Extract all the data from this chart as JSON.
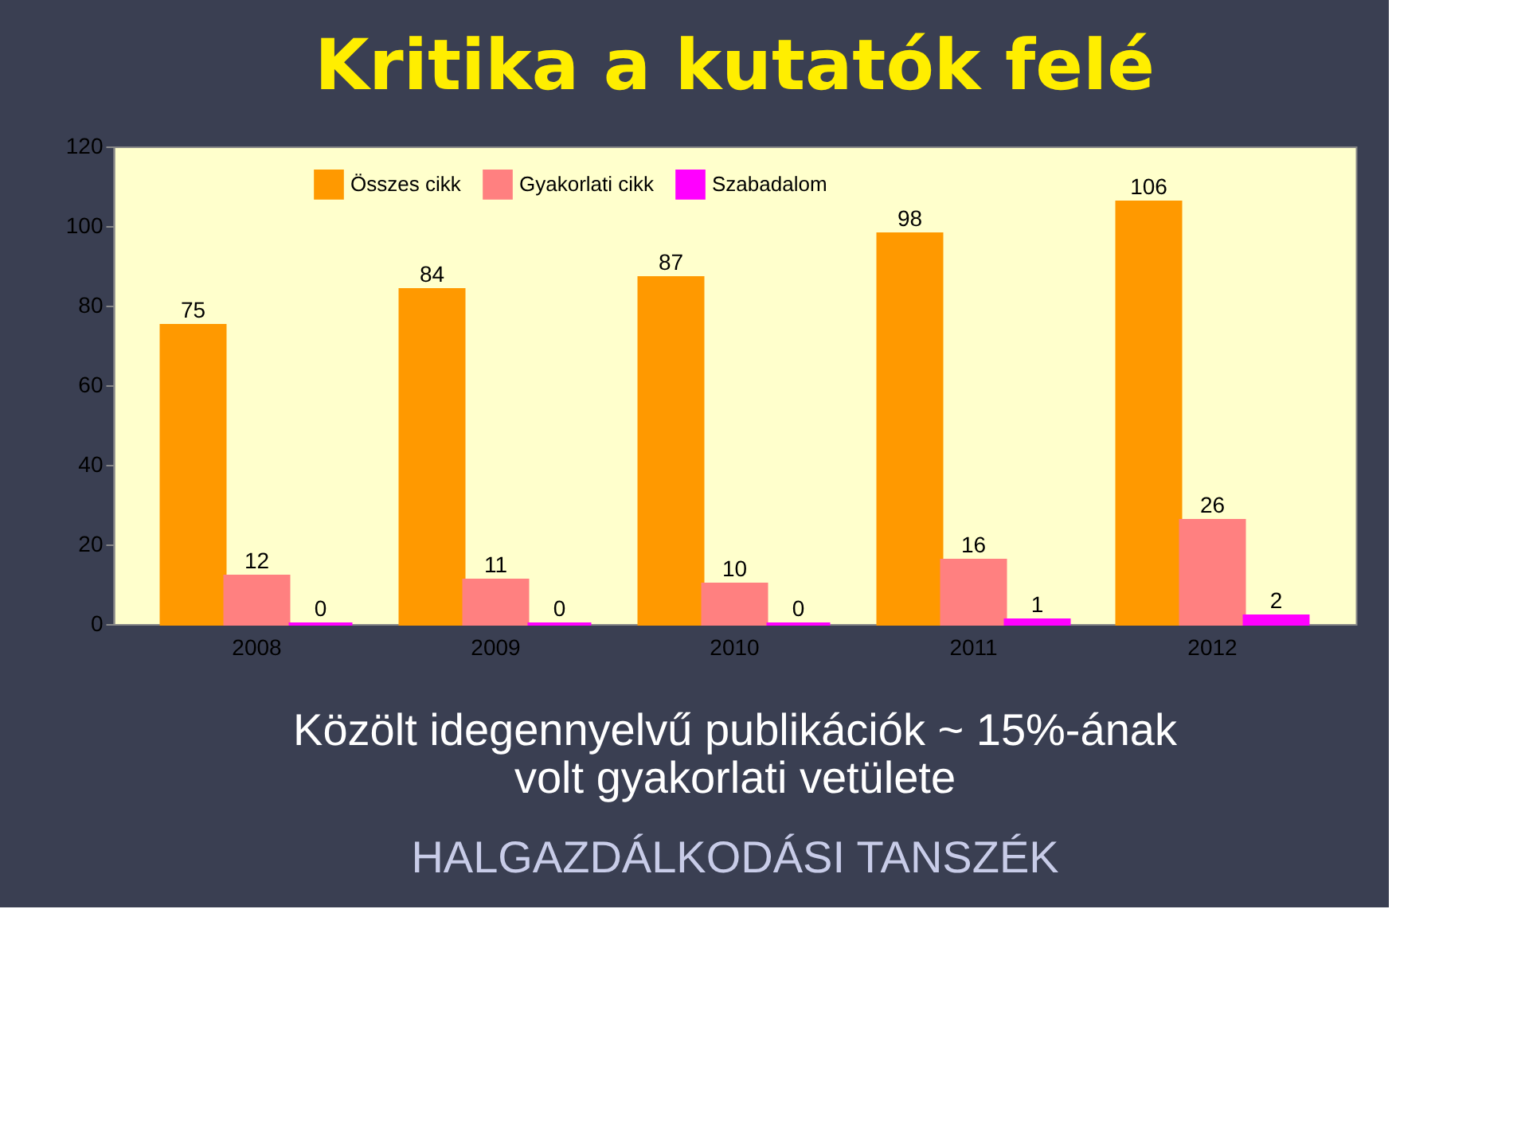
{
  "chart_data": {
    "type": "bar",
    "title": "Kritika a kutatók felé",
    "categories": [
      "2008",
      "2009",
      "2010",
      "2011",
      "2012"
    ],
    "series": [
      {
        "name": "Összes cikk",
        "color": "#ff9900",
        "values": [
          75,
          84,
          87,
          98,
          106
        ]
      },
      {
        "name": "Gyakorlati cikk",
        "color": "#ff8080",
        "values": [
          12,
          11,
          10,
          16,
          26
        ]
      },
      {
        "name": "Szabadalom",
        "color": "#ff00ff",
        "values": [
          0,
          0,
          0,
          1,
          2
        ]
      }
    ],
    "ylim": [
      0,
      120
    ],
    "yticks": [
      0,
      20,
      40,
      60,
      80,
      100,
      120
    ],
    "grid": false,
    "legend": "top",
    "data_labels": true,
    "annotations": [
      "Közölt idegennyelvű publikációk ~ 15%-ának\nvolt gyakorlati vetülete",
      "HALGAZDÁLKODÁSI TANSZÉK"
    ]
  }
}
